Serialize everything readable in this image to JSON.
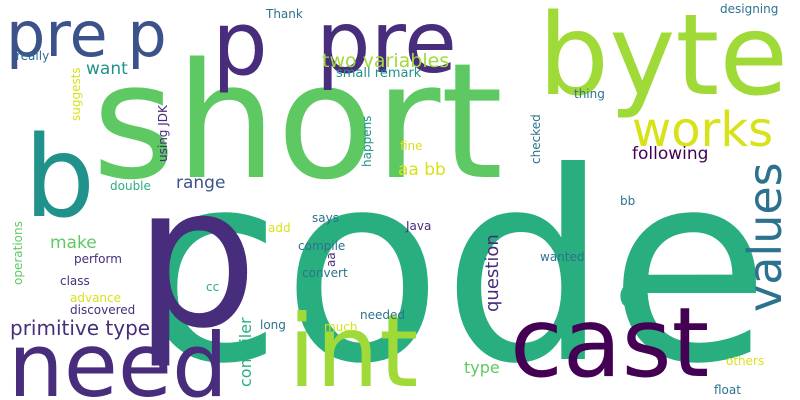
{
  "palette": {
    "purple": "#472d7b",
    "dark_purple": "#440154",
    "indigo": "#3b528b",
    "blue": "#2c728e",
    "teal": "#21918c",
    "green": "#28ae80",
    "light_green": "#5ec962",
    "lime": "#addc30",
    "yellow": "#fde725"
  },
  "words": [
    {
      "text": "code",
      "color": "#29af7f"
    },
    {
      "text": "short",
      "color": "#5ec962"
    },
    {
      "text": "p",
      "color": "#472d7b"
    },
    {
      "text": "need",
      "color": "#472d7b"
    },
    {
      "text": "cast",
      "color": "#440154"
    },
    {
      "text": "int",
      "color": "#a0da39"
    },
    {
      "text": "byte",
      "color": "#a0da39"
    },
    {
      "text": "pre",
      "color": "#472d7b"
    },
    {
      "text": "p",
      "color": "#472d7b"
    },
    {
      "text": "pre p",
      "color": "#3b528b"
    },
    {
      "text": "b",
      "color": "#21918c"
    },
    {
      "text": "works",
      "color": "#d8e219"
    },
    {
      "text": "values",
      "color": "#2c728e"
    },
    {
      "text": "c",
      "color": "#29af7f"
    },
    {
      "text": "primitive type",
      "color": "#472d7b"
    },
    {
      "text": "two variables",
      "color": "#a0da39"
    },
    {
      "text": "following",
      "color": "#440154"
    },
    {
      "text": "want",
      "color": "#21918c"
    },
    {
      "text": "range",
      "color": "#3b528b"
    },
    {
      "text": "aa bb",
      "color": "#d8e219"
    },
    {
      "text": "question",
      "color": "#472d7b"
    },
    {
      "text": "make",
      "color": "#5ec962"
    },
    {
      "text": "type",
      "color": "#5ec962"
    },
    {
      "text": "compiler",
      "color": "#29af7f"
    },
    {
      "text": "small remark",
      "color": "#21918c"
    },
    {
      "text": "Thank",
      "color": "#2c728e"
    },
    {
      "text": "designing",
      "color": "#2c728e"
    },
    {
      "text": "really",
      "color": "#2c728e"
    },
    {
      "text": "suggests",
      "color": "#d8e219"
    },
    {
      "text": "using JDK",
      "color": "#472d7b"
    },
    {
      "text": "thing",
      "color": "#2c728e"
    },
    {
      "text": "happens",
      "color": "#21918c"
    },
    {
      "text": "checked",
      "color": "#2c728e"
    },
    {
      "text": "fine",
      "color": "#d8e219"
    },
    {
      "text": "double",
      "color": "#29af7f"
    },
    {
      "text": "bb",
      "color": "#2c728e"
    },
    {
      "text": "operations",
      "color": "#5ec962"
    },
    {
      "text": "says",
      "color": "#2c728e"
    },
    {
      "text": "Java",
      "color": "#472d7b"
    },
    {
      "text": "add",
      "color": "#d8e219"
    },
    {
      "text": "compile",
      "color": "#2c728e"
    },
    {
      "text": "aa",
      "color": "#472d7b"
    },
    {
      "text": "wanted",
      "color": "#2c728e"
    },
    {
      "text": "perform",
      "color": "#472d7b"
    },
    {
      "text": "convert",
      "color": "#2c728e"
    },
    {
      "text": "class",
      "color": "#472d7b"
    },
    {
      "text": "cc",
      "color": "#29af7f"
    },
    {
      "text": "advance",
      "color": "#d8e219"
    },
    {
      "text": "discovered",
      "color": "#472d7b"
    },
    {
      "text": "needed",
      "color": "#2c728e"
    },
    {
      "text": "long",
      "color": "#2c728e"
    },
    {
      "text": "much",
      "color": "#d8e219"
    },
    {
      "text": "others",
      "color": "#d8e219"
    },
    {
      "text": "float",
      "color": "#2c728e"
    }
  ]
}
